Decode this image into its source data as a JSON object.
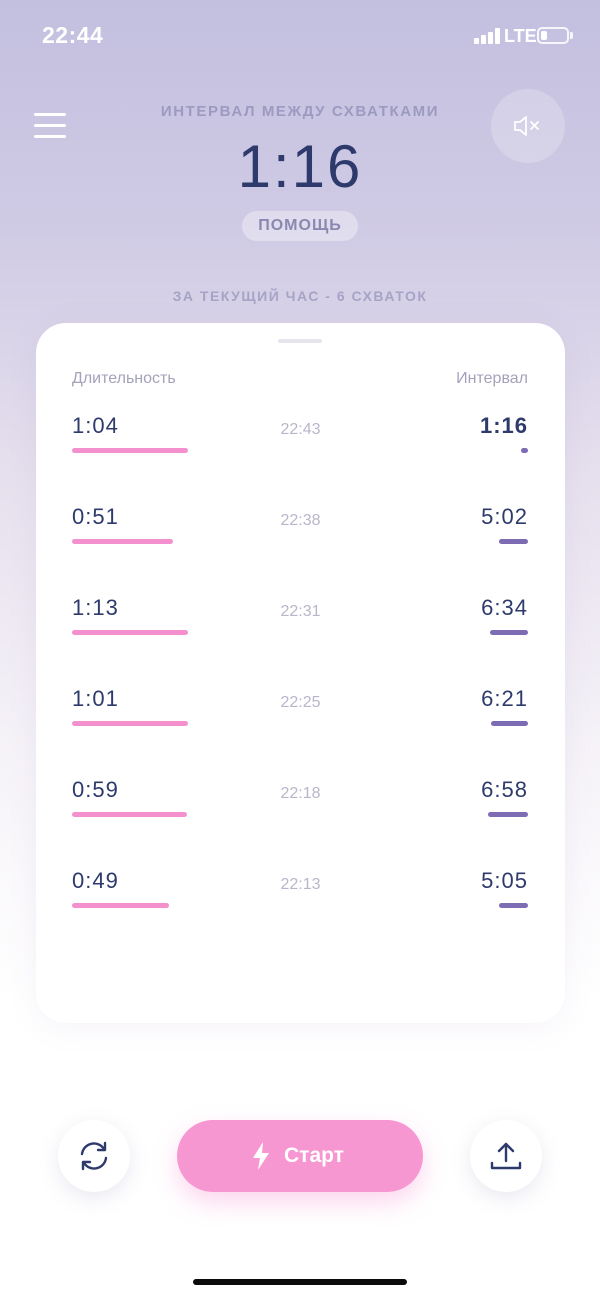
{
  "status_bar": {
    "time": "22:44",
    "network": "LTE"
  },
  "header": {
    "interval_label": "ИНТЕРВАЛ МЕЖДУ СХВАТКАМИ",
    "interval_value": "1:16",
    "help_label": "ПОМОЩЬ",
    "hour_summary": "ЗА ТЕКУЩИЙ ЧАС - 6 СХВАТОК",
    "menu_icon": "hamburger-menu-icon",
    "mute_icon": "speaker-muted-icon"
  },
  "table": {
    "col_duration": "Длительность",
    "col_interval": "Интервал",
    "rows": [
      {
        "duration": "1:04",
        "time": "22:43",
        "interval": "1:16",
        "current": true
      },
      {
        "duration": "0:51",
        "time": "22:38",
        "interval": "5:02",
        "current": false
      },
      {
        "duration": "1:13",
        "time": "22:31",
        "interval": "6:34",
        "current": false
      },
      {
        "duration": "1:01",
        "time": "22:25",
        "interval": "6:21",
        "current": false
      },
      {
        "duration": "0:59",
        "time": "22:18",
        "interval": "6:58",
        "current": false
      },
      {
        "duration": "0:49",
        "time": "22:13",
        "interval": "5:05",
        "current": false
      }
    ]
  },
  "controls": {
    "start_label": "Старт",
    "reset_icon": "refresh-icon",
    "share_icon": "share-upload-icon",
    "start_icon": "lightning-bolt-icon"
  },
  "colors": {
    "accent_pink": "#f797d1",
    "duration_bar": "#f590cf",
    "interval_bar": "#7d6cb4",
    "text_dark": "#2d3a6b"
  }
}
